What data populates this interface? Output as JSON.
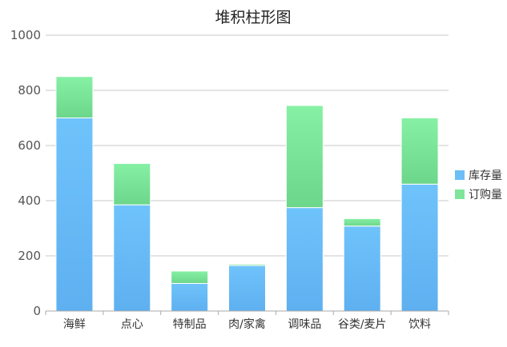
{
  "chart_data": {
    "type": "bar",
    "stacked": true,
    "title": "堆积柱形图",
    "xlabel": "",
    "ylabel": "",
    "ylim": [
      0,
      1000
    ],
    "yticks": [
      0,
      200,
      400,
      600,
      800,
      1000
    ],
    "grid": true,
    "legend_position": "right",
    "categories": [
      "海鲜",
      "点心",
      "特制品",
      "肉/家禽",
      "调味品",
      "谷类/麦片",
      "饮料"
    ],
    "series": [
      {
        "name": "库存量",
        "values": [
          700,
          385,
          100,
          165,
          375,
          308,
          460
        ],
        "color": "#6cbef7"
      },
      {
        "name": "订购量",
        "values": [
          150,
          150,
          45,
          5,
          370,
          27,
          240
        ],
        "color": "#7ee59a"
      }
    ]
  }
}
